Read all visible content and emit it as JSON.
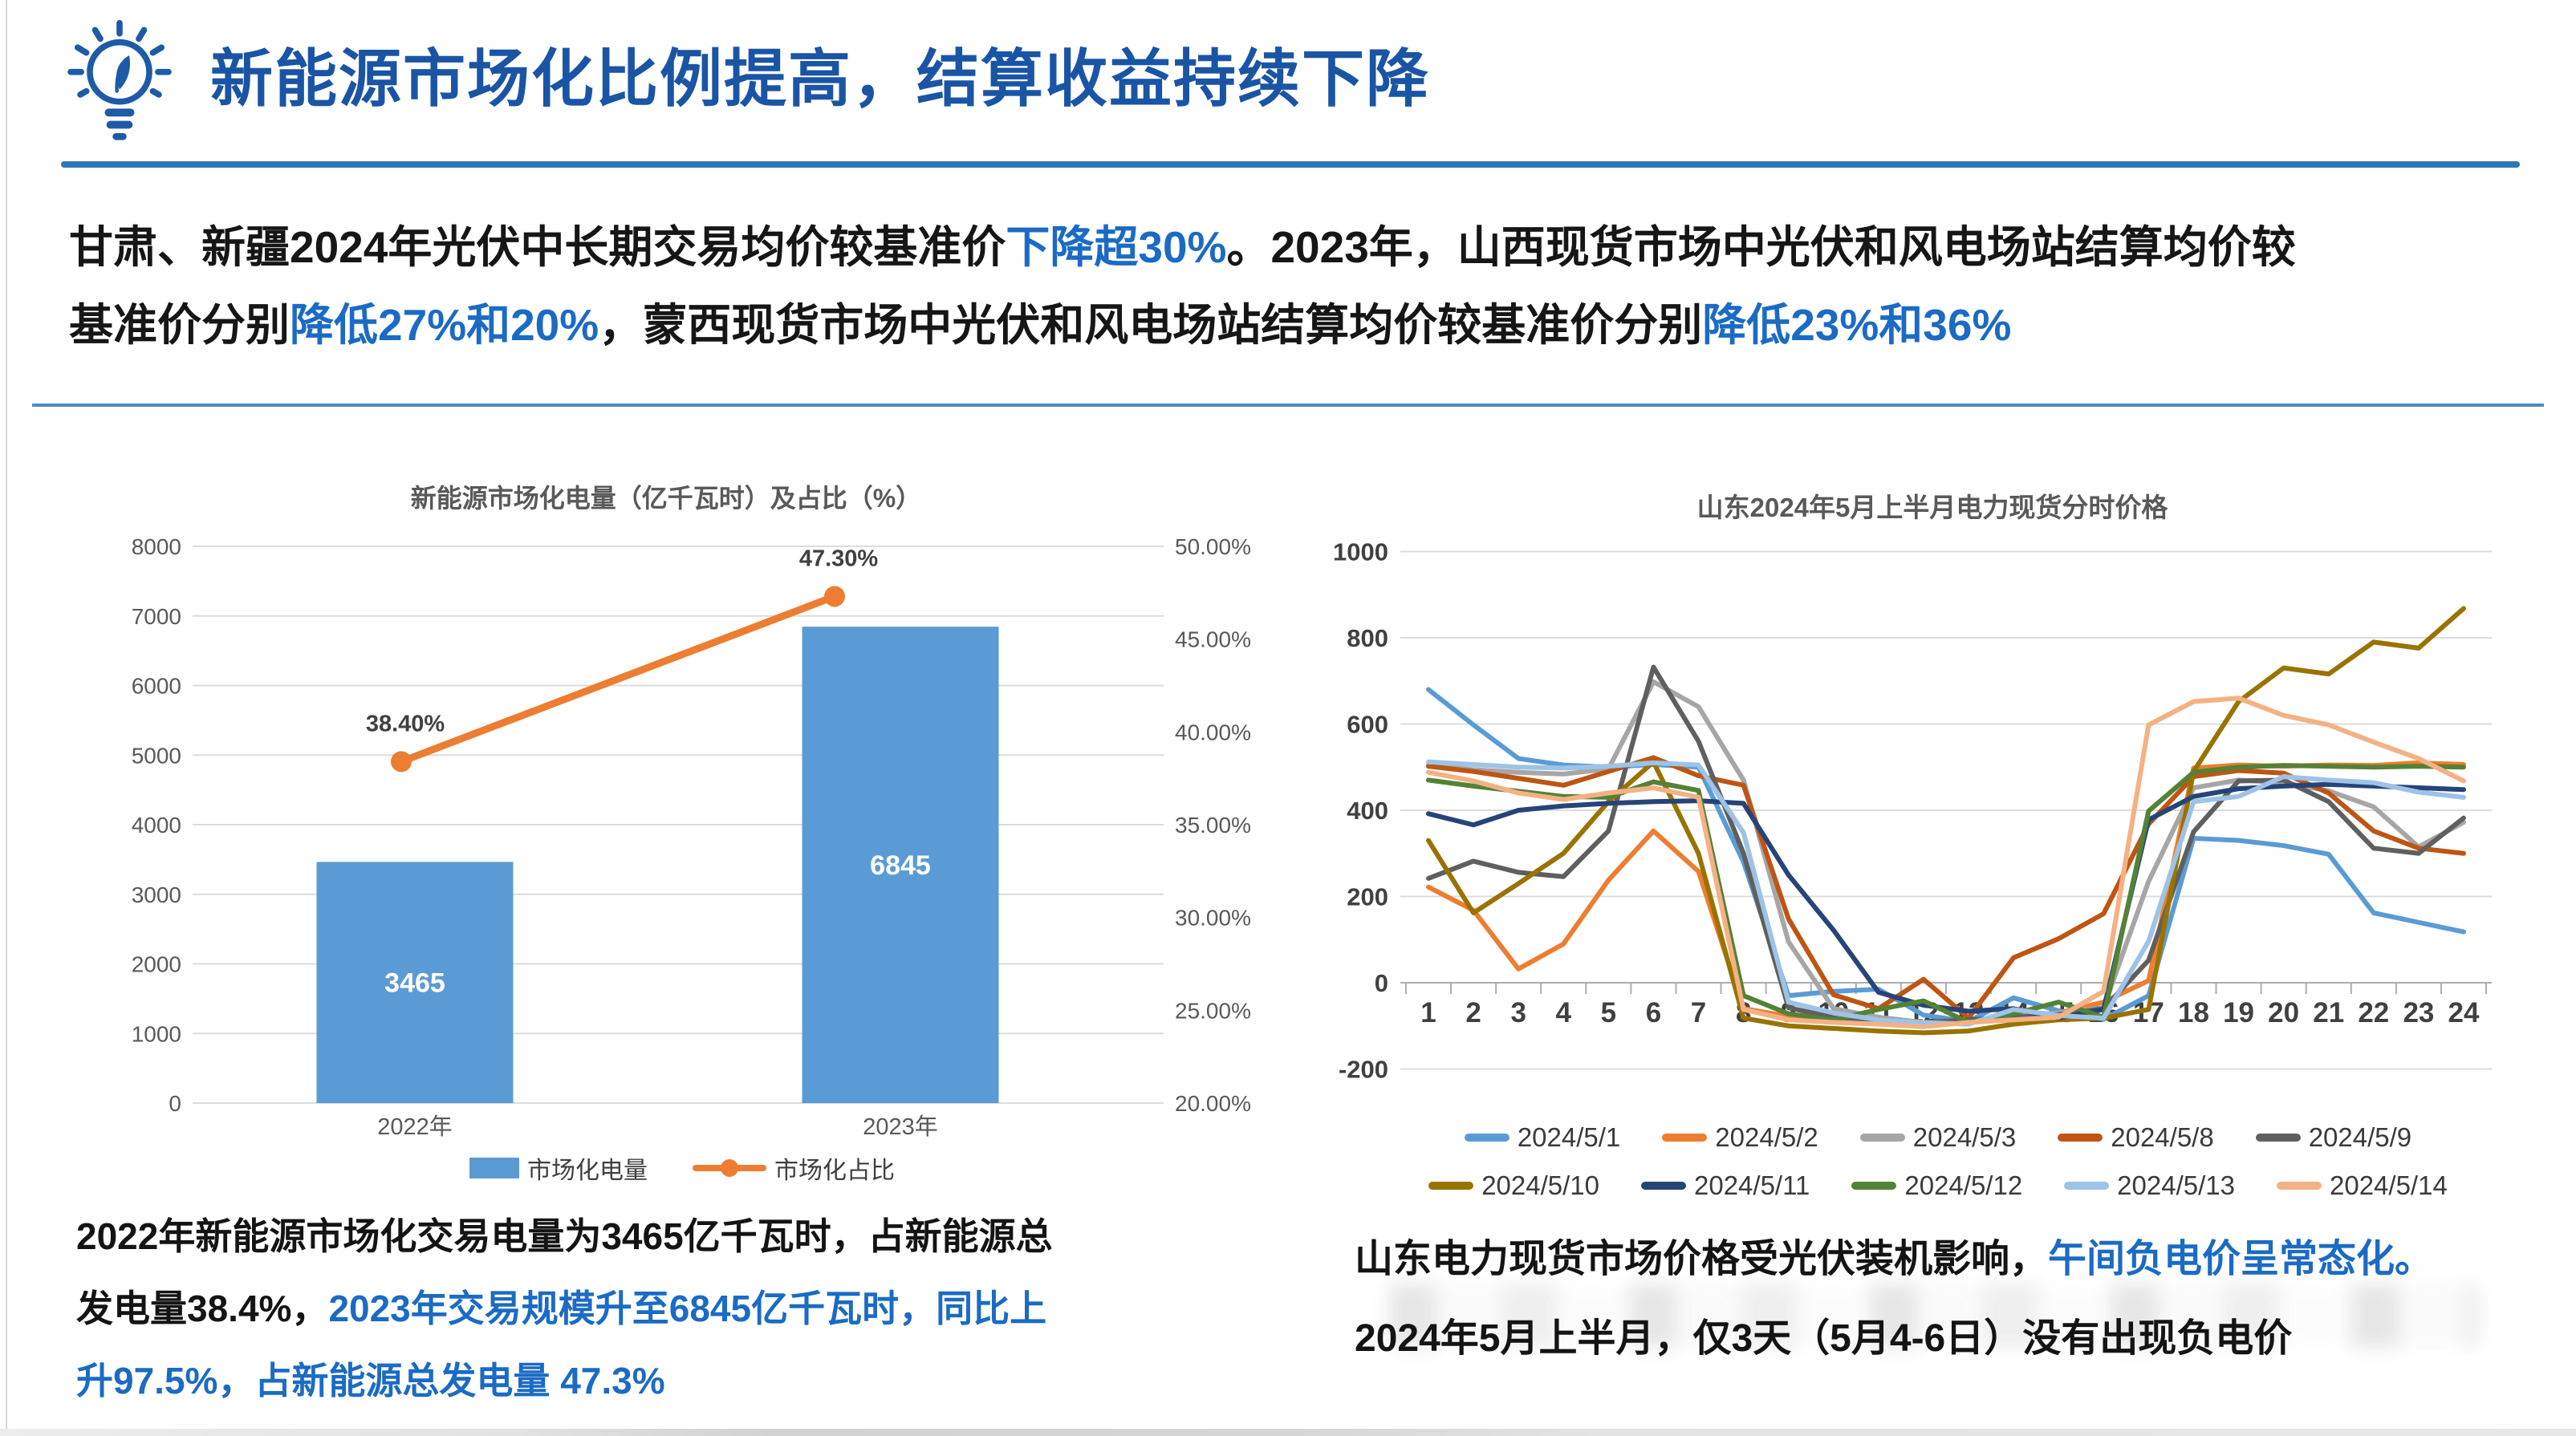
{
  "header": {
    "title": "新能源市场化比例提高，结算收益持续下降",
    "icon": "lightbulb-idea-icon"
  },
  "colors": {
    "title_blue": "#1A55A5",
    "accent_blue": "#1B6BC4",
    "rule_blue": "#2E75B6",
    "bar_blue": "#5B9BD5",
    "line_orange": "#ED7D31",
    "axis_gray": "#595959",
    "grid_gray": "#DCDCDC"
  },
  "intro": {
    "lines": [
      [
        {
          "t": "甘肃、新疆2024年光伏中长期交易均价较基准价"
        },
        {
          "t": "下降超30%",
          "hl": true
        },
        {
          "t": "。2023年，山西现货市场中光伏和风电场站结算均价较"
        }
      ],
      [
        {
          "t": "基准价分别"
        },
        {
          "t": "降低27%和20%",
          "hl": true
        },
        {
          "t": "，蒙西现货市场中光伏和风电场站结算均价较基准价分别"
        },
        {
          "t": "降低23%和36%",
          "hl": true
        }
      ]
    ]
  },
  "chart_data": [
    {
      "type": "bar+line",
      "title": "新能源市场化电量（亿千瓦时）及占比（%）",
      "categories": [
        "2022年",
        "2023年"
      ],
      "left_axis": {
        "min": 0,
        "max": 8000,
        "step": 1000
      },
      "right_axis": {
        "min": 20,
        "max": 50,
        "step": 5,
        "format": "percent"
      },
      "grid": true,
      "legend_position": "bottom",
      "series": [
        {
          "name": "市场化电量",
          "type": "bar",
          "axis": "left",
          "color": "#5B9BD5",
          "values": [
            3465,
            6845
          ]
        },
        {
          "name": "市场化占比",
          "type": "line",
          "axis": "right",
          "color": "#ED7D31",
          "values": [
            38.4,
            47.3
          ],
          "point_labels": [
            "38.40%",
            "47.30%"
          ]
        }
      ]
    },
    {
      "type": "line",
      "title": "山东2024年5月上半月电力现货分时价格",
      "x": [
        1,
        2,
        3,
        4,
        5,
        6,
        7,
        8,
        9,
        10,
        11,
        12,
        13,
        14,
        15,
        16,
        17,
        18,
        19,
        20,
        21,
        22,
        23,
        24
      ],
      "ylim": [
        -200,
        1000
      ],
      "ystep": 200,
      "grid": true,
      "legend_position": "bottom",
      "series": [
        {
          "name": "2024/5/1",
          "color": "#5B9BD5",
          "values": [
            680,
            598,
            520,
            505,
            500,
            506,
            500,
            280,
            -30,
            -20,
            -15,
            -75,
            -90,
            -35,
            -65,
            -85,
            -30,
            335,
            330,
            318,
            298,
            162,
            140,
            118
          ]
        },
        {
          "name": "2024/5/2",
          "color": "#ED7D31",
          "values": [
            222,
            168,
            32,
            90,
            238,
            352,
            258,
            -60,
            -78,
            -86,
            -92,
            -95,
            -88,
            -80,
            -70,
            -45,
            5,
            498,
            505,
            502,
            505,
            504,
            510,
            506
          ]
        },
        {
          "name": "2024/5/3",
          "color": "#A6A6A6",
          "values": [
            505,
            494,
            488,
            484,
            496,
            698,
            640,
            470,
            95,
            -60,
            -80,
            -92,
            -90,
            -76,
            -70,
            -58,
            235,
            452,
            470,
            464,
            445,
            408,
            315,
            372
          ]
        },
        {
          "name": "2024/5/8",
          "color": "#BE5514",
          "values": [
            502,
            490,
            474,
            458,
            490,
            522,
            480,
            458,
            148,
            -28,
            -60,
            8,
            -82,
            58,
            102,
            160,
            368,
            478,
            492,
            486,
            440,
            352,
            312,
            300
          ]
        },
        {
          "name": "2024/5/9",
          "color": "#5F5F5F",
          "values": [
            242,
            282,
            256,
            246,
            352,
            732,
            560,
            300,
            -58,
            -80,
            -86,
            -92,
            -86,
            -80,
            -74,
            -60,
            52,
            350,
            468,
            470,
            420,
            312,
            300,
            382
          ]
        },
        {
          "name": "2024/5/10",
          "color": "#997300",
          "values": [
            330,
            162,
            230,
            300,
            420,
            512,
            300,
            -82,
            -100,
            -106,
            -112,
            -116,
            -112,
            -96,
            -86,
            -82,
            -62,
            490,
            652,
            730,
            716,
            790,
            776,
            868
          ]
        },
        {
          "name": "2024/5/11",
          "color": "#264478",
          "values": [
            392,
            366,
            400,
            410,
            416,
            420,
            422,
            416,
            250,
            122,
            -22,
            -52,
            -66,
            -60,
            -82,
            -62,
            378,
            432,
            450,
            456,
            460,
            456,
            452,
            448
          ]
        },
        {
          "name": "2024/5/12",
          "color": "#548235",
          "values": [
            470,
            456,
            444,
            432,
            430,
            466,
            446,
            -30,
            -72,
            -86,
            -62,
            -42,
            -92,
            -72,
            -45,
            -80,
            398,
            488,
            500,
            504,
            502,
            500,
            502,
            500
          ]
        },
        {
          "name": "2024/5/13",
          "color": "#9DC3E6",
          "values": [
            512,
            506,
            500,
            498,
            502,
            510,
            505,
            348,
            -45,
            -70,
            -86,
            -92,
            -96,
            -62,
            -76,
            -82,
            96,
            420,
            432,
            478,
            470,
            464,
            442,
            430
          ]
        },
        {
          "name": "2024/5/14",
          "color": "#F4B183",
          "values": [
            488,
            468,
            440,
            425,
            440,
            452,
            430,
            -62,
            -86,
            -92,
            -96,
            -102,
            -92,
            -86,
            -80,
            -20,
            598,
            652,
            660,
            620,
            598,
            558,
            520,
            468
          ]
        }
      ]
    }
  ],
  "notes": {
    "left": {
      "lines": [
        [
          {
            "t": "2022年新能源市场化交易电量为3465亿千瓦时，占新能源总"
          }
        ],
        [
          {
            "t": "发电量38.4%，"
          },
          {
            "t": "2023年交易规模升至6845亿千瓦时，同比上",
            "hl": true
          }
        ],
        [
          {
            "t": "升97.5%，占新能源总发电量 47.3%",
            "hl": true
          }
        ]
      ]
    },
    "right": {
      "lines": [
        [
          {
            "t": "山东电力现货市场价格受光伏装机影响，"
          },
          {
            "t": "午间负电价呈常态化。",
            "hl": true
          }
        ],
        [
          {
            "t": "2024年5月上半月，仅3天（5月4-6日）没有出现负电价"
          }
        ]
      ]
    }
  }
}
